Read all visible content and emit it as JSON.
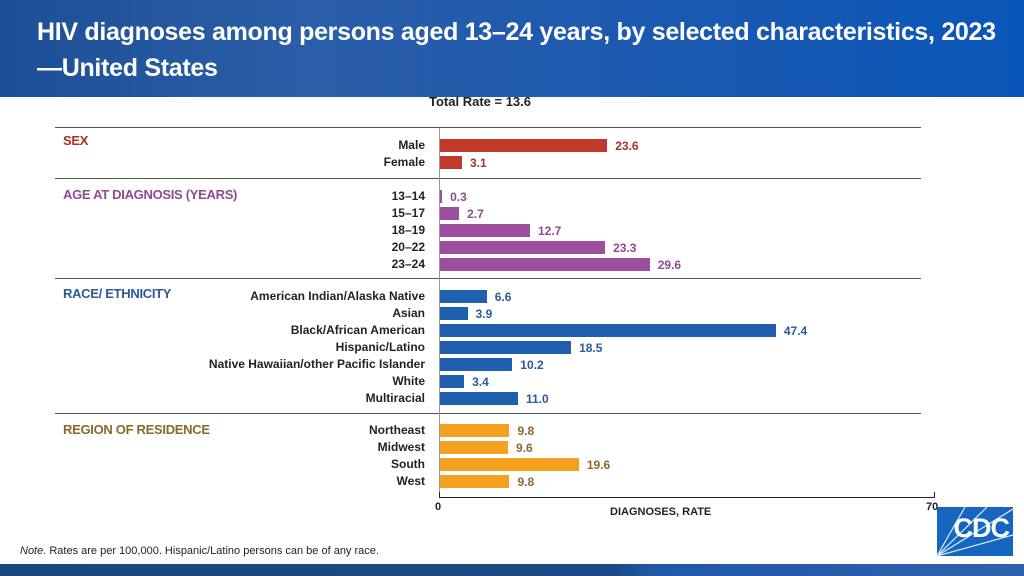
{
  "header": {
    "title": "HIV diagnoses among persons aged 13–24 years, by selected characteristics, 2023—United States"
  },
  "note": {
    "prefix": "Note.",
    "text": " Rates are per 100,000. Hispanic/Latino persons can be of any race."
  },
  "logo": {
    "text": "CDC"
  },
  "chart_data": {
    "type": "bar",
    "orientation": "horizontal",
    "title": "HIV diagnoses among persons aged 13–24 years, by selected characteristics, 2023—United States",
    "subtitle": "Total Rate = 13.6",
    "xlabel": "DIAGNOSES, RATE",
    "ylabel": "",
    "xlim": [
      0,
      70
    ],
    "xticks": [
      "0",
      "70"
    ],
    "grid": false,
    "groups": [
      {
        "name": "SEX",
        "color": "#c0392b",
        "label_color": "#a93226",
        "categories": [
          "Male",
          "Female"
        ],
        "values": [
          23.6,
          3.1
        ],
        "labels": [
          "23.6",
          "3.1"
        ]
      },
      {
        "name": "AGE AT DIAGNOSIS (YEARS)",
        "color": "#9b4f9e",
        "label_color": "#8e4a93",
        "categories": [
          "13–14",
          "15–17",
          "18–19",
          "20–22",
          "23–24"
        ],
        "values": [
          0.3,
          2.7,
          12.7,
          23.3,
          29.6
        ],
        "labels": [
          "0.3",
          "2.7",
          "12.7",
          "23.3",
          "29.6"
        ]
      },
      {
        "name": "RACE/ ETHNICITY",
        "color": "#1f5fad",
        "label_color": "#2a5a99",
        "categories": [
          "American Indian/Alaska Native",
          "Asian",
          "Black/African American",
          "Hispanic/Latino",
          "Native Hawaiian/other Pacific Islander",
          "White",
          "Multiracial"
        ],
        "values": [
          6.6,
          3.9,
          47.4,
          18.5,
          10.2,
          3.4,
          11.0
        ],
        "labels": [
          "6.6",
          "3.9",
          "47.4",
          "18.5",
          "10.2",
          "3.4",
          "11.0"
        ]
      },
      {
        "name": "REGION OF RESIDENCE",
        "color": "#f5a11f",
        "label_color": "#8a6a2a",
        "categories": [
          "Northeast",
          "Midwest",
          "South",
          "West"
        ],
        "values": [
          9.8,
          9.6,
          19.6,
          9.8
        ],
        "labels": [
          "9.8",
          "9.6",
          "19.6",
          "9.8"
        ]
      }
    ]
  }
}
